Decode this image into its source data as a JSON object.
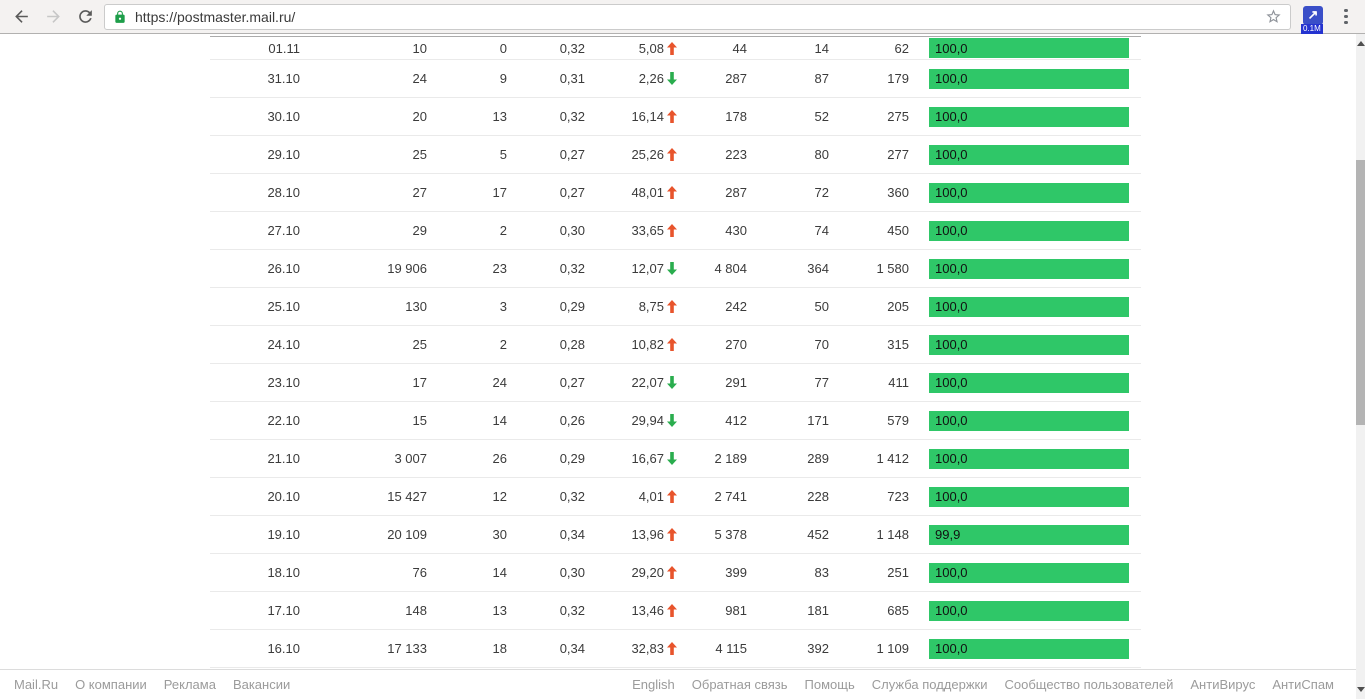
{
  "browser": {
    "url": "https://postmaster.mail.ru/",
    "extension_glyph": "↗",
    "extension_badge": "0.1M",
    "lock_color": "#1e9e4a",
    "extension_color": "#3a4fc8"
  },
  "table": {
    "bar_color": "#2fc768",
    "up_color": "#e8542c",
    "down_color": "#2aad4e",
    "columns": [
      "date",
      "sent",
      "complaints",
      "rate",
      "change_pct",
      "opened",
      "removed",
      "total",
      "delivered_pct"
    ],
    "rows": [
      {
        "date": "01.11",
        "c1": "10",
        "c2": "0",
        "c3": "0,32",
        "change": "5,08",
        "dir": "up",
        "c5": "44",
        "c6": "14",
        "c7": "62",
        "bar_label": "100,0",
        "bar_pct": 100
      },
      {
        "date": "31.10",
        "c1": "24",
        "c2": "9",
        "c3": "0,31",
        "change": "2,26",
        "dir": "down",
        "c5": "287",
        "c6": "87",
        "c7": "179",
        "bar_label": "100,0",
        "bar_pct": 100
      },
      {
        "date": "30.10",
        "c1": "20",
        "c2": "13",
        "c3": "0,32",
        "change": "16,14",
        "dir": "up",
        "c5": "178",
        "c6": "52",
        "c7": "275",
        "bar_label": "100,0",
        "bar_pct": 100
      },
      {
        "date": "29.10",
        "c1": "25",
        "c2": "5",
        "c3": "0,27",
        "change": "25,26",
        "dir": "up",
        "c5": "223",
        "c6": "80",
        "c7": "277",
        "bar_label": "100,0",
        "bar_pct": 100
      },
      {
        "date": "28.10",
        "c1": "27",
        "c2": "17",
        "c3": "0,27",
        "change": "48,01",
        "dir": "up",
        "c5": "287",
        "c6": "72",
        "c7": "360",
        "bar_label": "100,0",
        "bar_pct": 100
      },
      {
        "date": "27.10",
        "c1": "29",
        "c2": "2",
        "c3": "0,30",
        "change": "33,65",
        "dir": "up",
        "c5": "430",
        "c6": "74",
        "c7": "450",
        "bar_label": "100,0",
        "bar_pct": 100
      },
      {
        "date": "26.10",
        "c1": "19 906",
        "c2": "23",
        "c3": "0,32",
        "change": "12,07",
        "dir": "down",
        "c5": "4 804",
        "c6": "364",
        "c7": "1 580",
        "bar_label": "100,0",
        "bar_pct": 100
      },
      {
        "date": "25.10",
        "c1": "130",
        "c2": "3",
        "c3": "0,29",
        "change": "8,75",
        "dir": "up",
        "c5": "242",
        "c6": "50",
        "c7": "205",
        "bar_label": "100,0",
        "bar_pct": 100
      },
      {
        "date": "24.10",
        "c1": "25",
        "c2": "2",
        "c3": "0,28",
        "change": "10,82",
        "dir": "up",
        "c5": "270",
        "c6": "70",
        "c7": "315",
        "bar_label": "100,0",
        "bar_pct": 100
      },
      {
        "date": "23.10",
        "c1": "17",
        "c2": "24",
        "c3": "0,27",
        "change": "22,07",
        "dir": "down",
        "c5": "291",
        "c6": "77",
        "c7": "411",
        "bar_label": "100,0",
        "bar_pct": 100
      },
      {
        "date": "22.10",
        "c1": "15",
        "c2": "14",
        "c3": "0,26",
        "change": "29,94",
        "dir": "down",
        "c5": "412",
        "c6": "171",
        "c7": "579",
        "bar_label": "100,0",
        "bar_pct": 100
      },
      {
        "date": "21.10",
        "c1": "3 007",
        "c2": "26",
        "c3": "0,29",
        "change": "16,67",
        "dir": "down",
        "c5": "2 189",
        "c6": "289",
        "c7": "1 412",
        "bar_label": "100,0",
        "bar_pct": 100
      },
      {
        "date": "20.10",
        "c1": "15 427",
        "c2": "12",
        "c3": "0,32",
        "change": "4,01",
        "dir": "up",
        "c5": "2 741",
        "c6": "228",
        "c7": "723",
        "bar_label": "100,0",
        "bar_pct": 100
      },
      {
        "date": "19.10",
        "c1": "20 109",
        "c2": "30",
        "c3": "0,34",
        "change": "13,96",
        "dir": "up",
        "c5": "5 378",
        "c6": "452",
        "c7": "1 148",
        "bar_label": "99,9",
        "bar_pct": 99.9
      },
      {
        "date": "18.10",
        "c1": "76",
        "c2": "14",
        "c3": "0,30",
        "change": "29,20",
        "dir": "up",
        "c5": "399",
        "c6": "83",
        "c7": "251",
        "bar_label": "100,0",
        "bar_pct": 100
      },
      {
        "date": "17.10",
        "c1": "148",
        "c2": "13",
        "c3": "0,32",
        "change": "13,46",
        "dir": "up",
        "c5": "981",
        "c6": "181",
        "c7": "685",
        "bar_label": "100,0",
        "bar_pct": 100
      },
      {
        "date": "16.10",
        "c1": "17 133",
        "c2": "18",
        "c3": "0,34",
        "change": "32,83",
        "dir": "up",
        "c5": "4 115",
        "c6": "392",
        "c7": "1 109",
        "bar_label": "100,0",
        "bar_pct": 100
      }
    ]
  },
  "footer": {
    "left_links": [
      "Mail.Ru",
      "О компании",
      "Реклама",
      "Вакансии"
    ],
    "right_links": [
      "English",
      "Обратная связь",
      "Помощь",
      "Служба поддержки",
      "Сообщество пользователей",
      "АнтиВирус",
      "АнтиСпам"
    ]
  }
}
